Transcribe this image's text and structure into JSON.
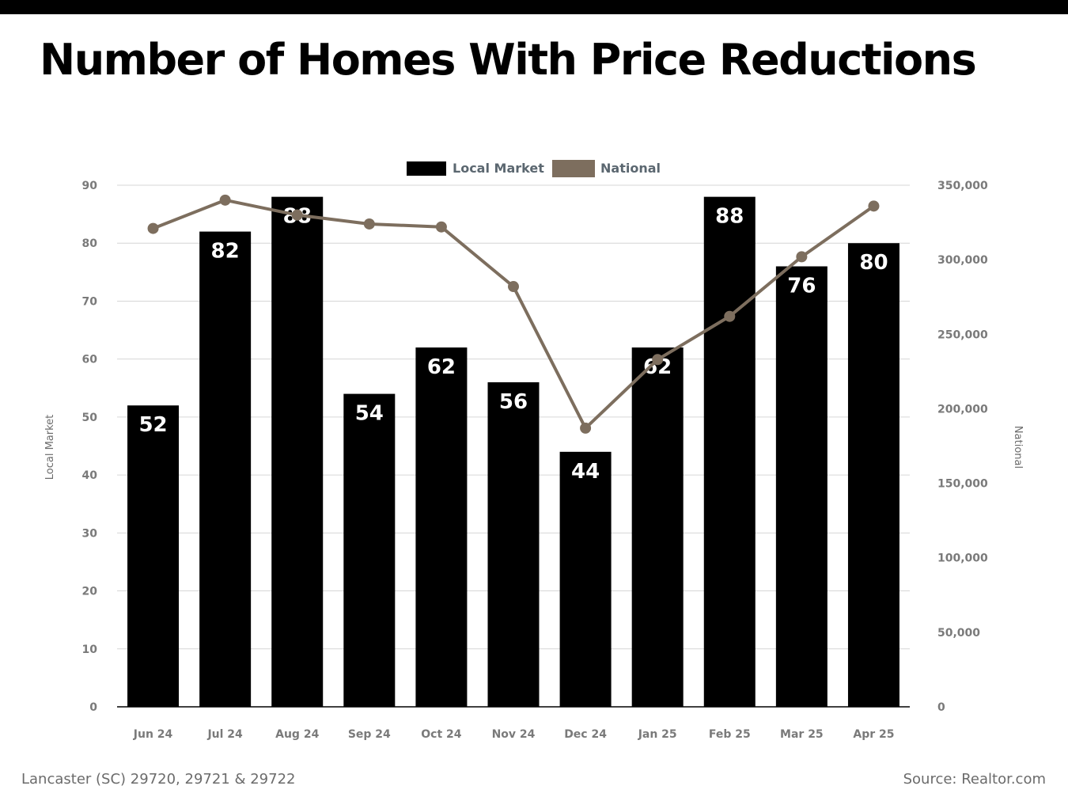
{
  "header": {
    "title": "Number of Homes With Price Reductions"
  },
  "footer": {
    "location": "Lancaster (SC) 29720, 29721 & 29722",
    "source": "Source: Realtor.com"
  },
  "colors": {
    "bar": "#000000",
    "line": "#7d6e5e",
    "grid": "#d6d6d6",
    "top_bar": "#000000"
  },
  "chart_data": {
    "type": "bar",
    "categories": [
      "Jun 24",
      "Jul 24",
      "Aug 24",
      "Sep 24",
      "Oct 24",
      "Nov 24",
      "Dec 24",
      "Jan 25",
      "Feb 25",
      "Mar 25",
      "Apr 25"
    ],
    "series": [
      {
        "name": "Local Market",
        "type": "bar",
        "axis": "left",
        "values": [
          52,
          82,
          88,
          54,
          62,
          56,
          44,
          62,
          88,
          76,
          80
        ]
      },
      {
        "name": "National",
        "type": "line",
        "axis": "right",
        "values": [
          321000,
          340000,
          330000,
          324000,
          322000,
          282000,
          187000,
          233000,
          262000,
          302000,
          336000
        ]
      }
    ],
    "ylabel": "Local Market",
    "y2label": "National",
    "ylim": [
      0,
      90
    ],
    "y2lim": [
      0,
      350000
    ],
    "yticks": [
      0,
      10,
      20,
      30,
      40,
      50,
      60,
      70,
      80,
      90
    ],
    "y2ticks": [
      "0",
      "50,000",
      "100,000",
      "150,000",
      "200,000",
      "250,000",
      "300,000",
      "350,000"
    ],
    "grid": true,
    "legend": "top-center"
  }
}
